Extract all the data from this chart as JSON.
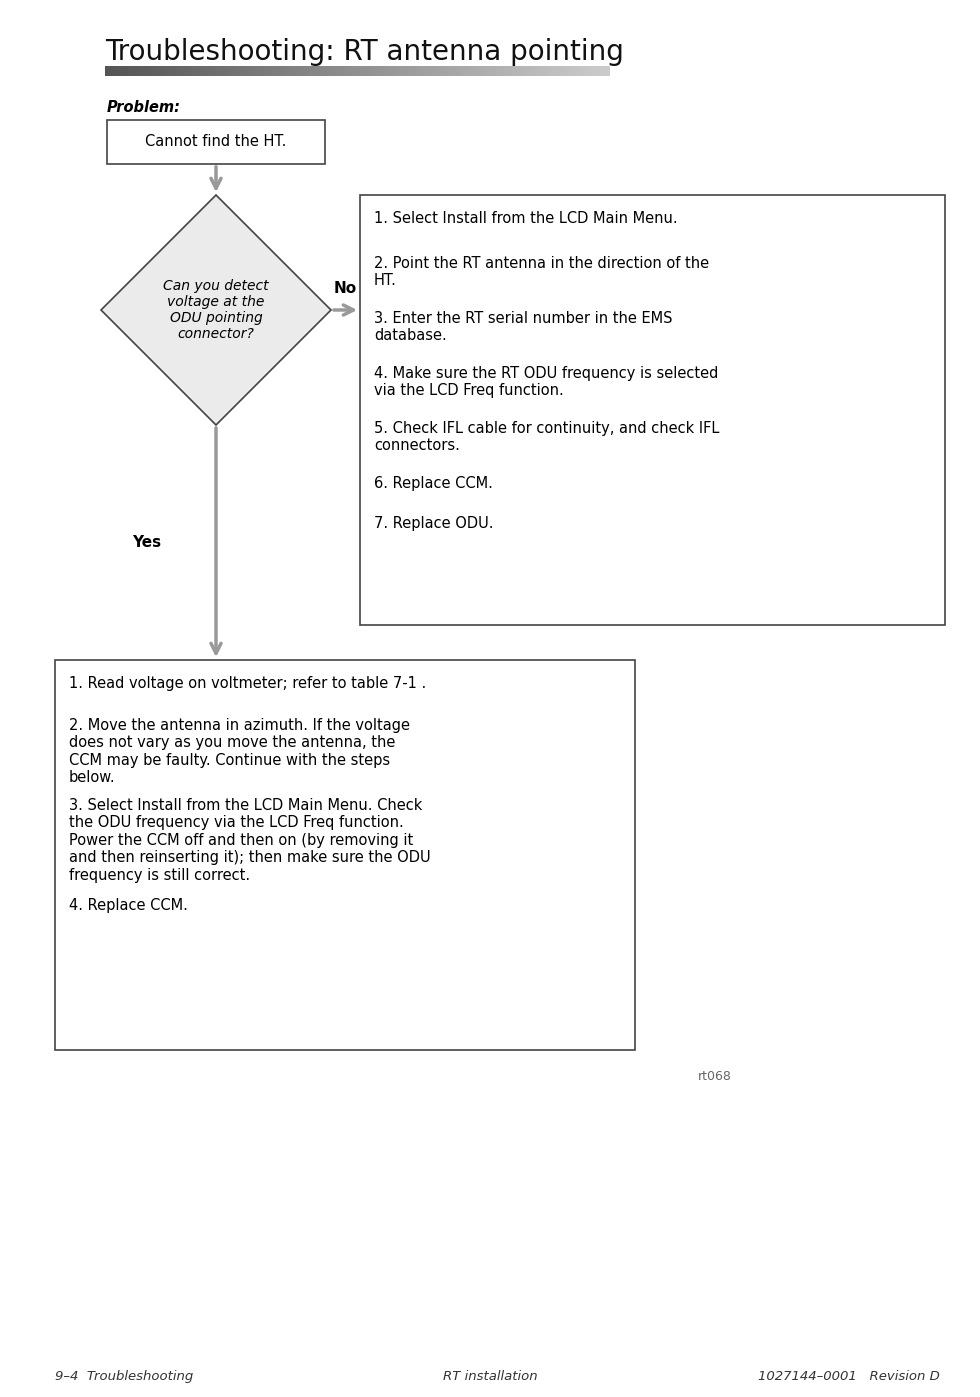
{
  "title": "Troubleshooting: RT antenna pointing",
  "footer_left": "9–4  Troubleshooting",
  "footer_center": "RT installation",
  "footer_right": "1027144–0001   Revision D",
  "problem_label": "Problem:",
  "problem_box_text": "Cannot find the HT.",
  "diamond_text": "Can you detect\nvoltage at the\nODU pointing\nconnector?",
  "no_label": "No",
  "yes_label": "Yes",
  "no_box_lines": [
    "1. Select Install from the LCD Main Menu.",
    "2. Point the RT antenna in the direction of the\nHT.",
    "3. Enter the RT serial number in the EMS\ndatabase.",
    "4. Make sure the RT ODU frequency is selected\nvia the LCD Freq function.",
    "5. Check IFL cable for continuity, and check IFL\nconnectors.",
    "6. Replace CCM.",
    "7. Replace ODU."
  ],
  "yes_box_lines": [
    "1. Read voltage on voltmeter; refer to table 7-1 .",
    "2. Move the antenna in azimuth. If the voltage\ndoes not vary as you move the antenna, the\nCCM may be faulty. Continue with the steps\nbelow.",
    "3. Select Install from the LCD Main Menu. Check\nthe ODU frequency via the LCD Freq function.\nPower the CCM off and then on (by removing it\nand then reinserting it); then make sure the ODU\nfrequency is still correct.",
    "4. Replace CCM."
  ],
  "rt068": "rt068",
  "bg_color": "#ffffff",
  "box_edge_color": "#444444",
  "diamond_fill": "#ebebeb",
  "arrow_color": "#999999",
  "text_color": "#000000",
  "title_color": "#111111",
  "title_fontsize": 20,
  "body_fontsize": 10.5,
  "problem_fontsize": 10.5,
  "footer_fontsize": 9.5
}
